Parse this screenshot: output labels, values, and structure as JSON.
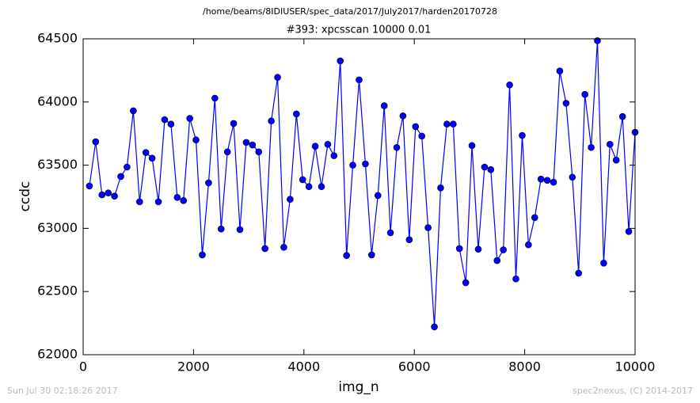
{
  "chart_data": {
    "type": "line",
    "suptitle": "/home/beams/8IDIUSER/spec_data/2017/July2017/harden20170728",
    "title": "#393: xpcsscan 10000 0.01",
    "x_label": "img_n",
    "y_label": "ccdc",
    "footer_left": "Sun Jul 30 02:18:26 2017",
    "footer_right": "spec2nexus, (C) 2014-2017",
    "color": "#0000ff",
    "x": [
      114,
      227,
      341,
      455,
      568,
      682,
      795,
      909,
      1023,
      1136,
      1250,
      1364,
      1477,
      1591,
      1705,
      1818,
      1932,
      2045,
      2159,
      2273,
      2386,
      2500,
      2614,
      2727,
      2841,
      2955,
      3068,
      3182,
      3295,
      3409,
      3523,
      3636,
      3750,
      3864,
      3977,
      4091,
      4205,
      4318,
      4432,
      4545,
      4659,
      4773,
      4886,
      5000,
      5114,
      5227,
      5341,
      5455,
      5568,
      5682,
      5795,
      5909,
      6023,
      6136,
      6250,
      6364,
      6477,
      6591,
      6705,
      6818,
      6932,
      7045,
      7159,
      7273,
      7386,
      7500,
      7614,
      7727,
      7841,
      7955,
      8068,
      8182,
      8295,
      8409,
      8523,
      8636,
      8750,
      8864,
      8977,
      9091,
      9205,
      9318,
      9432,
      9545,
      9659,
      9773,
      9886,
      10000
    ],
    "values": [
      63335,
      63685,
      63265,
      63280,
      63255,
      63410,
      63485,
      63930,
      63210,
      63600,
      63555,
      63210,
      63860,
      63825,
      63245,
      63220,
      63870,
      63700,
      62790,
      63360,
      64030,
      62995,
      63605,
      63830,
      62990,
      63680,
      63660,
      63605,
      62840,
      63850,
      64195,
      62850,
      63230,
      63905,
      63385,
      63330,
      63650,
      63330,
      63665,
      63575,
      64325,
      62785,
      63500,
      64175,
      63510,
      62790,
      63260,
      63970,
      62965,
      63640,
      63890,
      62910,
      63805,
      63730,
      63005,
      62220,
      63320,
      63825,
      63825,
      62840,
      62570,
      63655,
      62835,
      63485,
      63465,
      62745,
      62830,
      64135,
      62600,
      63735,
      62870,
      63085,
      63390,
      63380,
      63365,
      64245,
      63990,
      63405,
      62645,
      64060,
      63640,
      64485,
      62725,
      63665,
      63540,
      63885,
      62975,
      63760
    ],
    "xlim": [
      0,
      10000
    ],
    "xticks": [
      0,
      2000,
      4000,
      6000,
      8000,
      10000
    ],
    "ylim": [
      62000,
      64500
    ],
    "yticks": [
      62000,
      62500,
      63000,
      63500,
      64000,
      64500
    ],
    "grid": false
  }
}
